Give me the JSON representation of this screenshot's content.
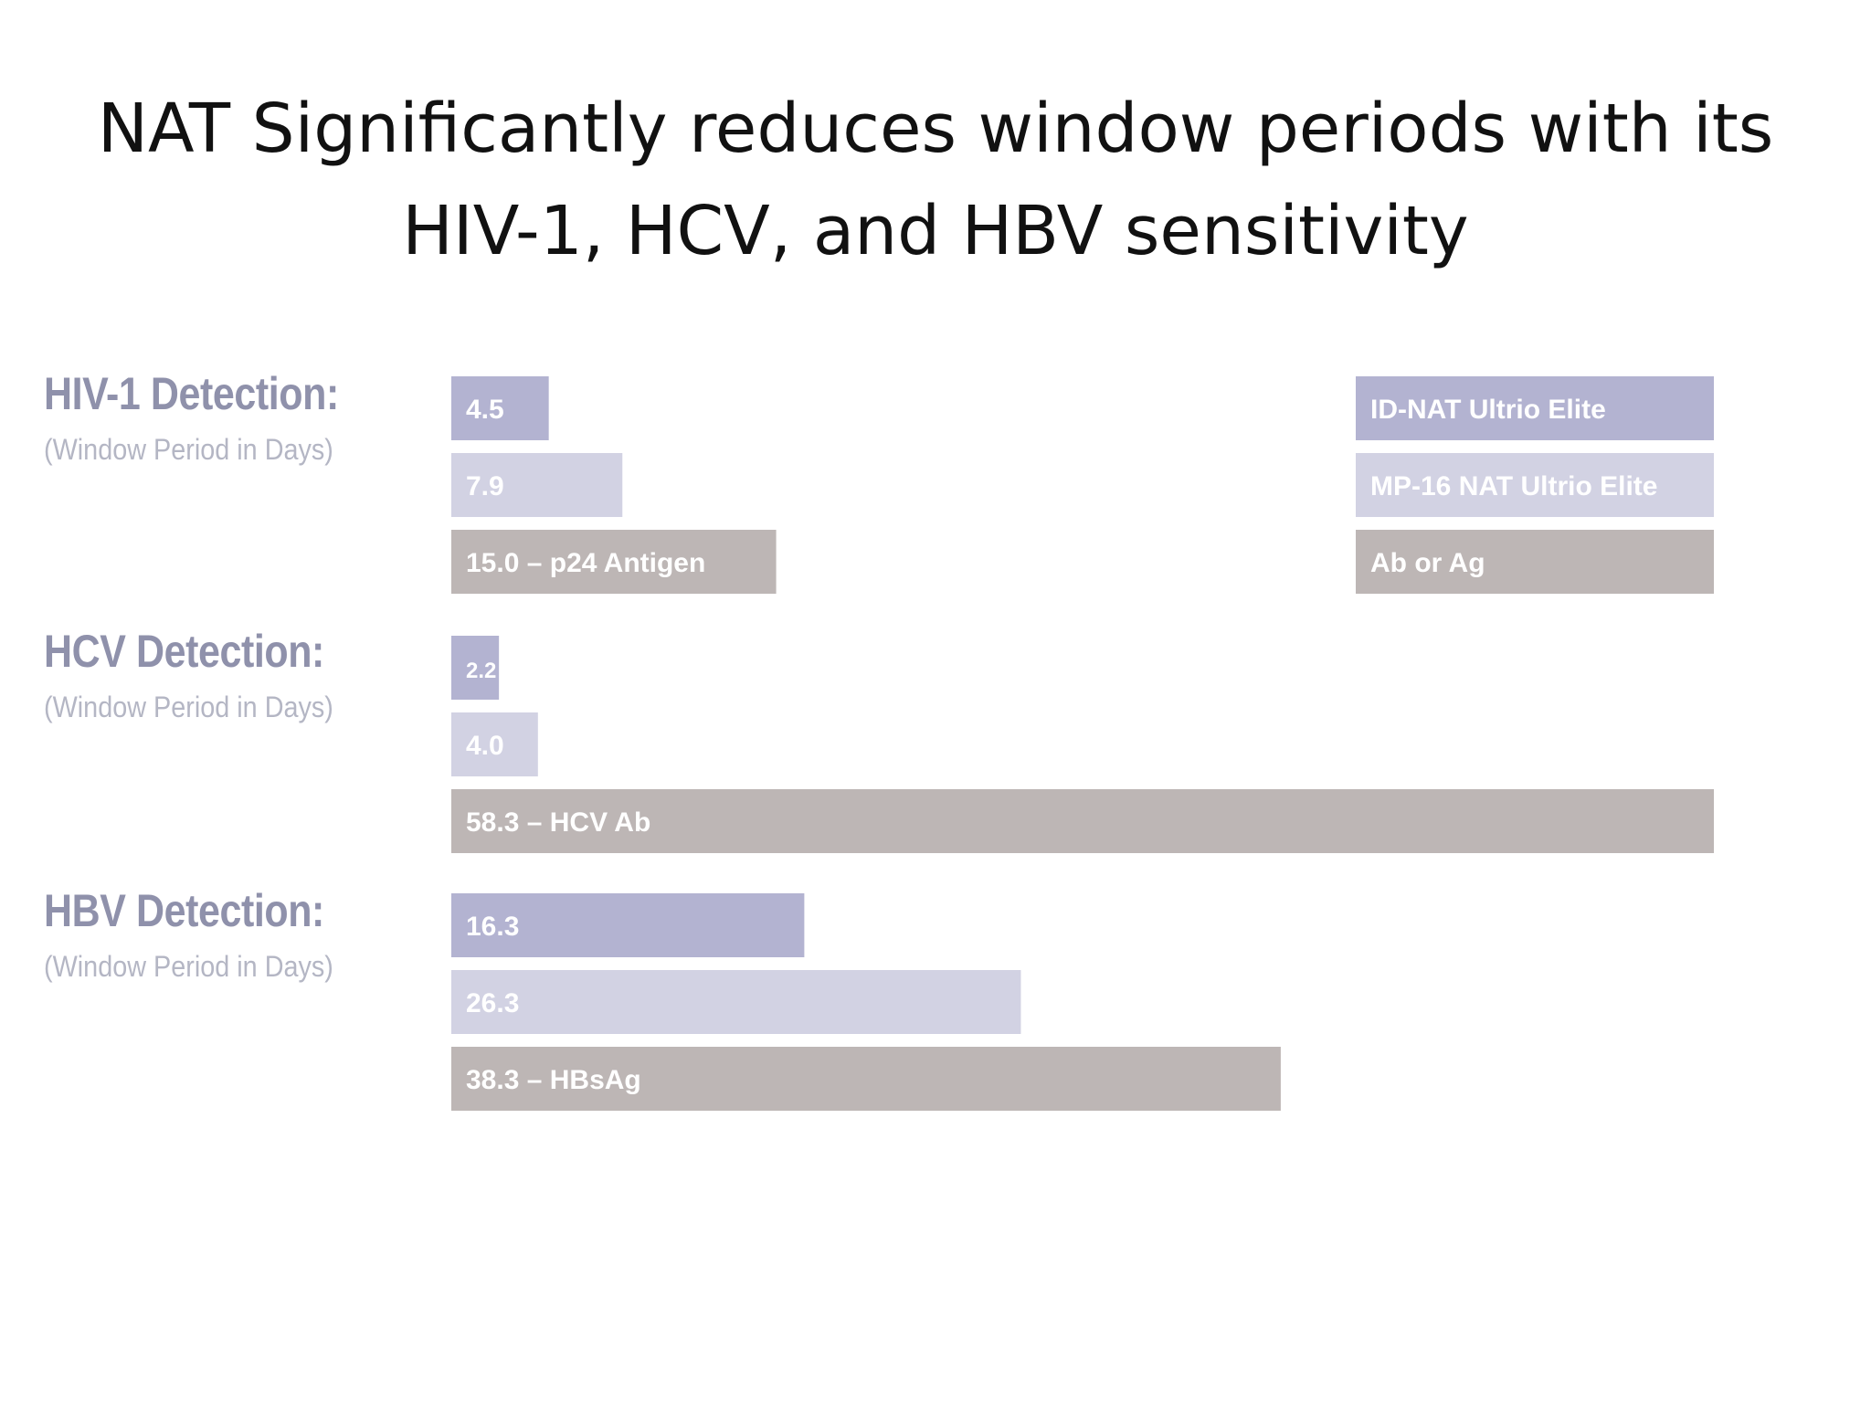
{
  "title_lines": [
    "NAT Significantly reduces window periods with its",
    "HIV-1, HCV, and HBV sensitivity"
  ],
  "colors": {
    "id_nat": "#b3b3d1",
    "mp16": "#d2d2e3",
    "ab_ag": "#bdb6b5",
    "bar_text": "#ffffff"
  },
  "chart_data": {
    "type": "bar",
    "orientation": "horizontal",
    "unit": "Window Period in Days",
    "x_max": 58.3,
    "legend": {
      "placement": "top-right",
      "items": [
        {
          "label": "ID-NAT Ultrio Elite",
          "color_key": "id_nat"
        },
        {
          "label": "MP-16 NAT Ultrio Elite",
          "color_key": "mp16"
        },
        {
          "label": "Ab or Ag",
          "color_key": "ab_ag"
        }
      ]
    },
    "groups": [
      {
        "title": "HIV-1 Detection:",
        "subtitle": "(Window Period in Days)",
        "bars": [
          {
            "series": "ID-NAT Ultrio Elite",
            "value": 4.5,
            "label": "4.5",
            "color_key": "id_nat"
          },
          {
            "series": "MP-16 NAT Ultrio Elite",
            "value": 7.9,
            "label": "7.9",
            "color_key": "mp16"
          },
          {
            "series": "Ab or Ag",
            "value": 15.0,
            "label": "15.0 – p24 Antigen",
            "color_key": "ab_ag"
          }
        ]
      },
      {
        "title": "HCV Detection:",
        "subtitle": "(Window Period in Days)",
        "bars": [
          {
            "series": "ID-NAT Ultrio Elite",
            "value": 2.2,
            "label": "2.2",
            "color_key": "id_nat"
          },
          {
            "series": "MP-16 NAT Ultrio Elite",
            "value": 4.0,
            "label": "4.0",
            "color_key": "mp16"
          },
          {
            "series": "Ab or Ag",
            "value": 58.3,
            "label": "58.3 – HCV Ab",
            "color_key": "ab_ag"
          }
        ]
      },
      {
        "title": "HBV Detection:",
        "subtitle": "(Window Period in Days)",
        "bars": [
          {
            "series": "ID-NAT Ultrio Elite",
            "value": 16.3,
            "label": "16.3",
            "color_key": "id_nat"
          },
          {
            "series": "MP-16 NAT Ultrio Elite",
            "value": 26.3,
            "label": "26.3",
            "color_key": "mp16"
          },
          {
            "series": "Ab or Ag",
            "value": 38.3,
            "label": "38.3 – HBsAg",
            "color_key": "ab_ag"
          }
        ]
      }
    ]
  }
}
